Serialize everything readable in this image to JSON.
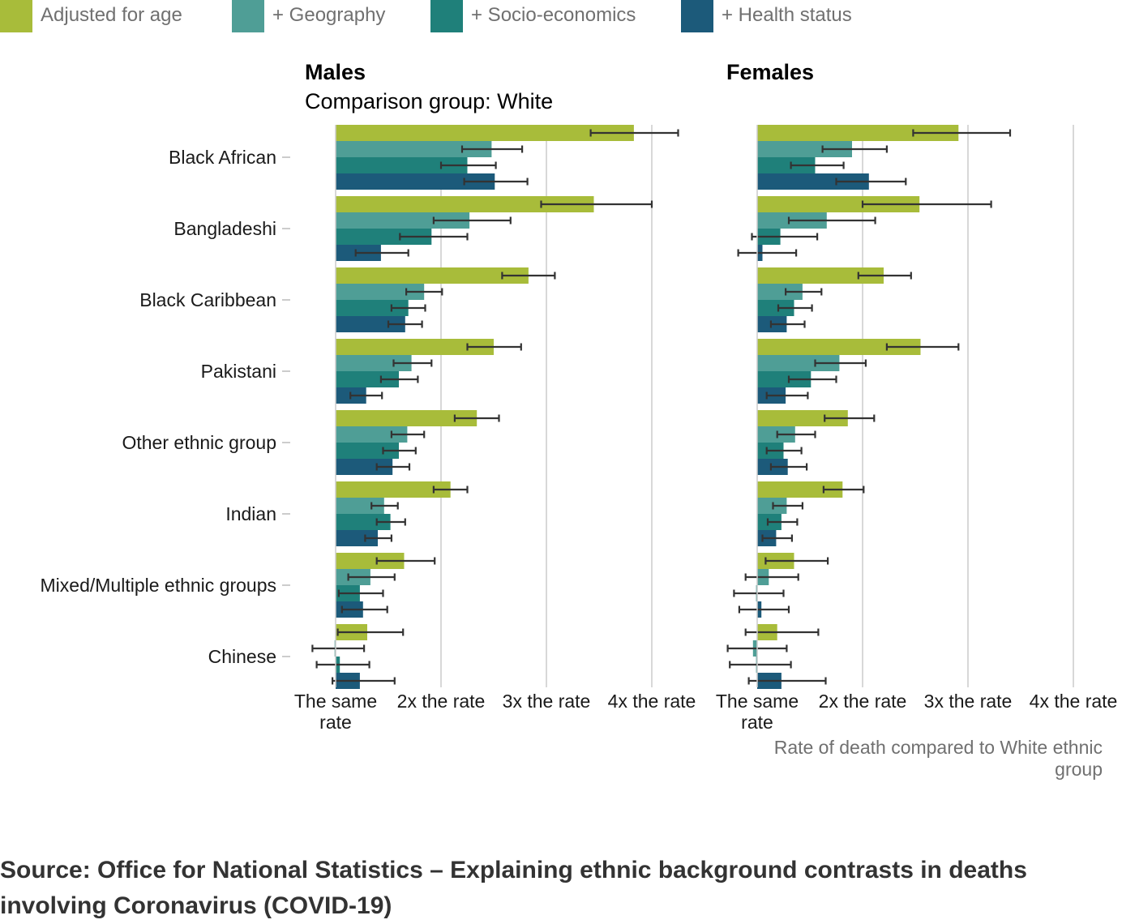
{
  "chart_data": {
    "type": "bar",
    "orientation": "horizontal",
    "comparison_group": "Comparison group: White",
    "series": [
      {
        "name": "Adjusted for age",
        "color": "#a8bc3a"
      },
      {
        "name": "+ Geography",
        "color": "#4f9e96"
      },
      {
        "name": "+ Socio-economics",
        "color": "#1f807a"
      },
      {
        "name": "+ Health status",
        "color": "#1c5a7a"
      }
    ],
    "categories": [
      "Black African",
      "Bangladeshi",
      "Black Caribbean",
      "Pakistani",
      "Other ethnic group",
      "Indian",
      "Mixed/Multiple ethnic groups",
      "Chinese"
    ],
    "x_ticks": [
      {
        "value": 1,
        "label": [
          "The same",
          "rate"
        ]
      },
      {
        "value": 2,
        "label": [
          "2x the rate"
        ]
      },
      {
        "value": 3,
        "label": [
          "3x the rate"
        ]
      },
      {
        "value": 4,
        "label": [
          "4x the rate"
        ]
      }
    ],
    "x_axis_label": [
      "Rate of death compared to White ethnic",
      "group"
    ],
    "xlim": [
      1,
      4.5
    ],
    "grid": true,
    "legend_position": "top",
    "panels": [
      {
        "title": "Males",
        "data": {
          "Black African": [
            [
              3.83,
              3.42,
              4.25
            ],
            [
              2.48,
              2.2,
              2.77
            ],
            [
              2.25,
              2.0,
              2.52
            ],
            [
              2.51,
              2.22,
              2.82
            ]
          ],
          "Bangladeshi": [
            [
              3.45,
              2.95,
              4.0
            ],
            [
              2.27,
              1.93,
              2.66
            ],
            [
              1.91,
              1.61,
              2.25
            ],
            [
              1.43,
              1.19,
              1.69
            ]
          ],
          "Black Caribbean": [
            [
              2.83,
              2.58,
              3.08
            ],
            [
              1.84,
              1.67,
              2.01
            ],
            [
              1.69,
              1.53,
              1.85
            ],
            [
              1.66,
              1.5,
              1.82
            ]
          ],
          "Pakistani": [
            [
              2.5,
              2.25,
              2.76
            ],
            [
              1.72,
              1.55,
              1.91
            ],
            [
              1.6,
              1.43,
              1.78
            ],
            [
              1.29,
              1.14,
              1.44
            ]
          ],
          "Other ethnic group": [
            [
              2.34,
              2.13,
              2.55
            ],
            [
              1.68,
              1.53,
              1.84
            ],
            [
              1.6,
              1.45,
              1.76
            ],
            [
              1.54,
              1.39,
              1.7
            ]
          ],
          "Indian": [
            [
              2.09,
              1.93,
              2.25
            ],
            [
              1.46,
              1.34,
              1.59
            ],
            [
              1.52,
              1.39,
              1.66
            ],
            [
              1.4,
              1.28,
              1.53
            ]
          ],
          "Mixed/Multiple ethnic groups": [
            [
              1.65,
              1.39,
              1.94
            ],
            [
              1.33,
              1.12,
              1.56
            ],
            [
              1.23,
              1.03,
              1.45
            ],
            [
              1.26,
              1.06,
              1.49
            ]
          ],
          "Chinese": [
            [
              1.3,
              1.02,
              1.64
            ],
            [
              0.99,
              0.78,
              1.27
            ],
            [
              1.04,
              0.82,
              1.32
            ],
            [
              1.23,
              0.97,
              1.56
            ]
          ]
        }
      },
      {
        "title": "Females",
        "data": {
          "Black African": [
            [
              2.91,
              2.48,
              3.4
            ],
            [
              1.9,
              1.62,
              2.23
            ],
            [
              1.55,
              1.32,
              1.82
            ],
            [
              2.06,
              1.75,
              2.41
            ]
          ],
          "Bangladeshi": [
            [
              2.54,
              2.0,
              3.22
            ],
            [
              1.66,
              1.3,
              2.12
            ],
            [
              1.22,
              0.95,
              1.57
            ],
            [
              1.05,
              0.82,
              1.37
            ]
          ],
          "Black Caribbean": [
            [
              2.2,
              1.96,
              2.46
            ],
            [
              1.43,
              1.27,
              1.61
            ],
            [
              1.35,
              1.2,
              1.52
            ],
            [
              1.28,
              1.13,
              1.45
            ]
          ],
          "Pakistani": [
            [
              2.55,
              2.23,
              2.91
            ],
            [
              1.78,
              1.55,
              2.03
            ],
            [
              1.51,
              1.3,
              1.75
            ],
            [
              1.27,
              1.09,
              1.48
            ]
          ],
          "Other ethnic group": [
            [
              1.86,
              1.64,
              2.11
            ],
            [
              1.36,
              1.19,
              1.55
            ],
            [
              1.25,
              1.09,
              1.42
            ],
            [
              1.29,
              1.13,
              1.47
            ]
          ],
          "Indian": [
            [
              1.81,
              1.63,
              2.01
            ],
            [
              1.28,
              1.15,
              1.43
            ],
            [
              1.23,
              1.1,
              1.38
            ],
            [
              1.18,
              1.05,
              1.33
            ]
          ],
          "Mixed/Multiple ethnic groups": [
            [
              1.35,
              1.08,
              1.67
            ],
            [
              1.11,
              0.89,
              1.39
            ],
            [
              0.99,
              0.78,
              1.25
            ],
            [
              1.04,
              0.83,
              1.3
            ]
          ],
          "Chinese": [
            [
              1.19,
              0.89,
              1.58
            ],
            [
              0.96,
              0.72,
              1.28
            ],
            [
              0.99,
              0.74,
              1.32
            ],
            [
              1.23,
              0.92,
              1.65
            ]
          ]
        }
      }
    ]
  },
  "source": "Source: Office for National Statistics – Explaining ethnic background contrasts in deaths involving Coronavirus (COVID-19)"
}
